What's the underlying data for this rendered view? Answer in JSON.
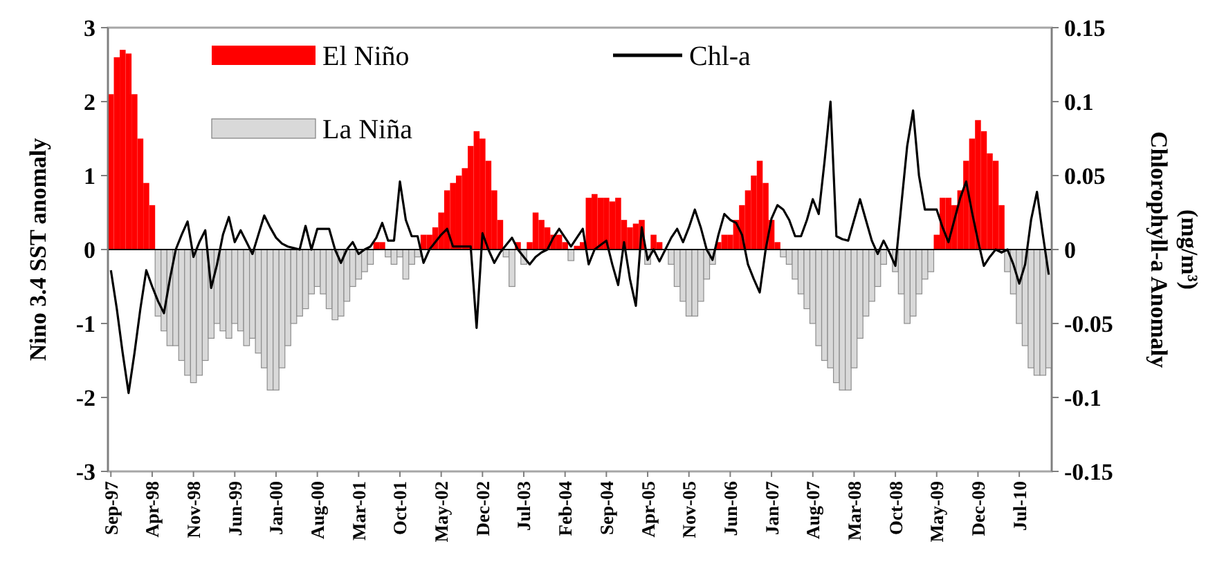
{
  "chart_data": {
    "type": "bar",
    "categories": [
      "Sep-97",
      null,
      null,
      null,
      null,
      null,
      null,
      "Apr-98",
      null,
      null,
      null,
      null,
      null,
      null,
      "Nov-98",
      null,
      null,
      null,
      null,
      null,
      null,
      "Jun-99",
      null,
      null,
      null,
      null,
      null,
      null,
      "Jan-00",
      null,
      null,
      null,
      null,
      null,
      null,
      "Aug-00",
      null,
      null,
      null,
      null,
      null,
      null,
      "Mar-01",
      null,
      null,
      null,
      null,
      null,
      null,
      "Oct-01",
      null,
      null,
      null,
      null,
      null,
      null,
      "May-02",
      null,
      null,
      null,
      null,
      null,
      null,
      "Dec-02",
      null,
      null,
      null,
      null,
      null,
      null,
      "Jul-03",
      null,
      null,
      null,
      null,
      null,
      null,
      "Feb-04",
      null,
      null,
      null,
      null,
      null,
      null,
      "Sep-04",
      null,
      null,
      null,
      null,
      null,
      null,
      "Apr-05",
      null,
      null,
      null,
      null,
      null,
      null,
      "Nov-05",
      null,
      null,
      null,
      null,
      null,
      null,
      "Jun-06",
      null,
      null,
      null,
      null,
      null,
      null,
      "Jan-07",
      null,
      null,
      null,
      null,
      null,
      null,
      "Aug-07",
      null,
      null,
      null,
      null,
      null,
      null,
      "Mar-08",
      null,
      null,
      null,
      null,
      null,
      null,
      "Oct-08",
      null,
      null,
      null,
      null,
      null,
      null,
      "May-09",
      null,
      null,
      null,
      null,
      null,
      null,
      "Dec-09",
      null,
      null,
      null,
      null,
      null,
      null,
      "Jul-10",
      null,
      null,
      null,
      null,
      null
    ],
    "series": [
      {
        "name": "El Niño",
        "color": "#ff0000",
        "values": [
          2.1,
          2.6,
          2.7,
          2.65,
          2.1,
          1.5,
          0.9,
          0.6,
          null,
          null,
          null,
          null,
          null,
          null,
          null,
          null,
          null,
          null,
          null,
          null,
          null,
          null,
          null,
          null,
          null,
          null,
          null,
          null,
          null,
          null,
          null,
          null,
          null,
          null,
          null,
          null,
          null,
          null,
          null,
          null,
          null,
          null,
          null,
          null,
          null,
          0.1,
          0.1,
          null,
          null,
          null,
          null,
          null,
          null,
          0.2,
          0.2,
          0.3,
          0.5,
          0.8,
          0.9,
          1.0,
          1.1,
          1.4,
          1.6,
          1.5,
          1.2,
          0.8,
          0.4,
          null,
          null,
          0.1,
          null,
          0.1,
          0.5,
          0.4,
          0.3,
          0.2,
          0.2,
          0.1,
          null,
          0.05,
          0.1,
          0.7,
          0.75,
          0.7,
          0.7,
          0.65,
          0.7,
          0.4,
          0.3,
          0.35,
          0.4,
          null,
          0.2,
          0.1,
          null,
          null,
          null,
          null,
          null,
          null,
          null,
          null,
          null,
          0.1,
          0.2,
          0.2,
          0.4,
          0.6,
          0.8,
          1.0,
          1.2,
          0.9,
          0.4,
          0.1,
          null,
          null,
          null,
          null,
          null,
          null,
          null,
          null,
          null,
          null,
          null,
          null,
          null,
          null,
          null,
          null,
          null,
          null,
          null,
          null,
          null,
          null,
          null,
          null,
          null,
          null,
          0.2,
          0.7,
          0.7,
          0.6,
          0.8,
          1.2,
          1.5,
          1.75,
          1.6,
          1.3,
          1.2,
          0.6,
          null,
          null,
          null,
          null,
          null,
          null,
          null,
          null
        ]
      },
      {
        "name": "La Niña",
        "color": "#d9d9d9",
        "values": [
          null,
          null,
          null,
          null,
          null,
          null,
          null,
          null,
          -0.9,
          -1.1,
          -1.3,
          -1.3,
          -1.5,
          -1.7,
          -1.8,
          -1.7,
          -1.5,
          -1.2,
          -1.0,
          -1.1,
          -1.2,
          -1.0,
          -1.1,
          -1.3,
          -1.2,
          -1.4,
          -1.6,
          -1.9,
          -1.9,
          -1.6,
          -1.3,
          -1.0,
          -0.9,
          -0.8,
          -0.6,
          -0.5,
          -0.6,
          -0.8,
          -0.95,
          -0.9,
          -0.7,
          -0.5,
          -0.4,
          -0.3,
          -0.2,
          null,
          null,
          -0.1,
          -0.2,
          -0.1,
          -0.4,
          -0.2,
          -0.1,
          null,
          null,
          null,
          null,
          null,
          null,
          null,
          null,
          null,
          null,
          null,
          null,
          null,
          null,
          -0.1,
          -0.5,
          null,
          -0.2,
          null,
          null,
          null,
          null,
          null,
          null,
          null,
          -0.15,
          null,
          null,
          null,
          null,
          null,
          null,
          null,
          null,
          null,
          null,
          null,
          null,
          -0.2,
          null,
          null,
          null,
          -0.2,
          -0.5,
          -0.7,
          -0.9,
          -0.9,
          -0.7,
          -0.4,
          -0.2,
          null,
          null,
          null,
          null,
          null,
          null,
          null,
          null,
          null,
          null,
          null,
          -0.1,
          -0.2,
          -0.4,
          -0.6,
          -0.8,
          -1.0,
          -1.3,
          -1.5,
          -1.6,
          -1.8,
          -1.9,
          -1.9,
          -1.6,
          -1.2,
          -0.9,
          -0.7,
          -0.5,
          -0.2,
          null,
          -0.3,
          -0.6,
          -1.0,
          -0.9,
          -0.6,
          -0.4,
          -0.3,
          null,
          null,
          null,
          null,
          null,
          null,
          null,
          null,
          null,
          null,
          null,
          null,
          -0.3,
          -0.6,
          -1.0,
          -1.3,
          -1.6,
          -1.7,
          -1.7,
          -1.6
        ]
      },
      {
        "name": "Chl-a",
        "type": "line",
        "axis": "y2",
        "color": "#000000",
        "values": [
          -0.014,
          -0.04,
          -0.07,
          -0.097,
          -0.07,
          -0.04,
          -0.014,
          -0.025,
          -0.035,
          -0.043,
          -0.02,
          0.0,
          0.01,
          0.019,
          -0.005,
          0.005,
          0.013,
          -0.026,
          -0.01,
          0.01,
          0.022,
          0.005,
          0.013,
          0.005,
          -0.003,
          0.01,
          0.023,
          0.015,
          0.008,
          0.004,
          0.002,
          0.001,
          0.0,
          0.016,
          0.0,
          0.014,
          0.014,
          0.014,
          0.0,
          -0.009,
          0.0,
          0.005,
          -0.003,
          0.0,
          0.002,
          0.008,
          0.018,
          0.006,
          0.006,
          0.046,
          0.02,
          0.009,
          0.009,
          -0.009,
          0.0,
          0.005,
          0.01,
          0.014,
          0.002,
          0.002,
          0.002,
          0.002,
          -0.053,
          0.011,
          0.0,
          -0.009,
          -0.002,
          0.003,
          0.008,
          0.0,
          -0.005,
          -0.01,
          -0.005,
          -0.002,
          0.0,
          0.008,
          0.014,
          0.008,
          0.002,
          0.008,
          0.014,
          -0.01,
          0.0,
          0.003,
          0.006,
          -0.01,
          -0.024,
          0.005,
          -0.02,
          -0.038,
          0.015,
          -0.007,
          0.0,
          -0.008,
          0.0,
          0.008,
          0.014,
          0.005,
          0.015,
          0.027,
          0.015,
          0.0,
          -0.007,
          0.01,
          0.024,
          0.02,
          0.018,
          0.01,
          -0.01,
          -0.02,
          -0.029,
          0.0,
          0.021,
          0.03,
          0.027,
          0.02,
          0.009,
          0.009,
          0.02,
          0.034,
          0.024,
          0.06,
          0.1,
          0.009,
          0.007,
          0.006,
          0.02,
          0.034,
          0.02,
          0.006,
          -0.003,
          0.006,
          -0.002,
          -0.011,
          0.03,
          0.07,
          0.094,
          0.05,
          0.027,
          0.027,
          0.027,
          0.015,
          0.005,
          0.02,
          0.035,
          0.046,
          0.025,
          0.006,
          -0.011,
          -0.005,
          0.0,
          -0.002,
          0.0,
          -0.01,
          -0.023,
          -0.01,
          0.02,
          0.039,
          0.01,
          -0.017
        ]
      }
    ],
    "ylabel": "Nino 3.4 SST anomaly",
    "y2label": "Chlorophyll-a Anomaly\n(mg/m³)",
    "ylim": [
      -3,
      3
    ],
    "yticks": [
      -3,
      -2,
      -1,
      0,
      1,
      2,
      3
    ],
    "y2lim": [
      -0.15,
      0.15
    ],
    "y2ticks": [
      -0.15,
      -0.1,
      -0.05,
      0,
      0.05,
      0.1,
      0.15
    ],
    "legend": "top left"
  }
}
